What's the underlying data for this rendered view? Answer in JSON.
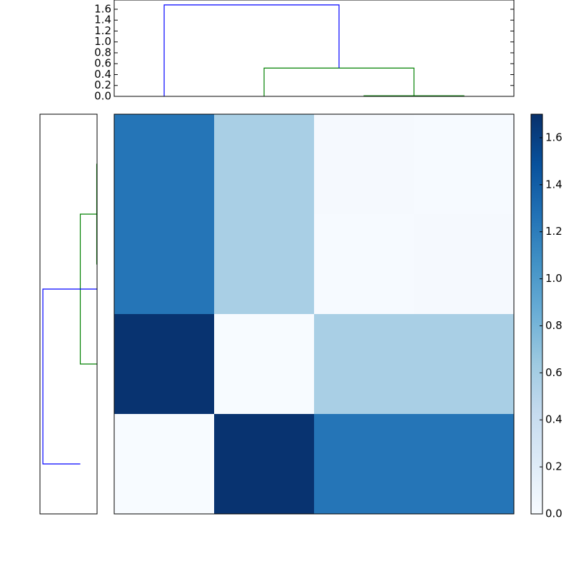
{
  "chart_data": [
    {
      "type": "dendrogram",
      "orientation": "top",
      "xlim": [
        0,
        40
      ],
      "ylim": [
        0,
        1.77
      ],
      "yticks": [
        {
          "value": 0,
          "label": "0.0"
        },
        {
          "value": 0.2,
          "label": "0.2"
        },
        {
          "value": 0.4,
          "label": "0.4"
        },
        {
          "value": 0.6,
          "label": "0.6"
        },
        {
          "value": 0.8,
          "label": "0.8"
        },
        {
          "value": 1,
          "label": "1.0"
        },
        {
          "value": 1.2,
          "label": "1.2"
        },
        {
          "value": 1.4,
          "label": "1.4"
        },
        {
          "value": 1.6,
          "label": "1.6"
        }
      ],
      "links": [
        {
          "color": "#008000",
          "leaf": [
            25,
            25,
            35,
            35
          ],
          "height": [
            0,
            0.01,
            0.01,
            0
          ]
        },
        {
          "color": "#008000",
          "leaf": [
            15,
            15,
            30,
            30
          ],
          "height": [
            0,
            0.52,
            0.52,
            0.01
          ]
        },
        {
          "color": "#0000ff",
          "leaf": [
            5,
            5,
            22.5,
            22.5
          ],
          "height": [
            0,
            1.68,
            1.68,
            0.52
          ]
        }
      ]
    },
    {
      "type": "dendrogram",
      "orientation": "left",
      "ylim": [
        0,
        40
      ],
      "xlim": [
        1.77,
        0
      ],
      "links": [
        {
          "color": "#008000",
          "leaf": [
            5,
            5,
            15,
            15
          ],
          "height": [
            0,
            0.01,
            0.01,
            0
          ]
        },
        {
          "color": "#008000",
          "leaf": [
            10,
            10,
            25,
            25
          ],
          "height": [
            0,
            0.52,
            0.52,
            0.01
          ]
        },
        {
          "color": "#0000ff",
          "leaf": [
            17.5,
            17.5,
            35,
            35
          ],
          "height": [
            0,
            1.68,
            1.68,
            0.52
          ]
        }
      ]
    },
    {
      "type": "heatmap",
      "matrix": [
        [
          1.25,
          0.58,
          0.02,
          0.01
        ],
        [
          1.25,
          0.58,
          0.01,
          0.02
        ],
        [
          1.68,
          0,
          0.58,
          0.58
        ],
        [
          0,
          1.68,
          1.25,
          1.25
        ]
      ],
      "colormap": [
        "#f7fbff",
        "#deebf7",
        "#c6dbef",
        "#9ecae1",
        "#6baed6",
        "#4292c6",
        "#2171b5",
        "#08519c",
        "#08306b"
      ],
      "clim": [
        0,
        1.7
      ],
      "cticks": [
        {
          "value": 0,
          "label": "0.0"
        },
        {
          "value": 0.2,
          "label": "0.2"
        },
        {
          "value": 0.4,
          "label": "0.4"
        },
        {
          "value": 0.6,
          "label": "0.6"
        },
        {
          "value": 0.8,
          "label": "0.8"
        },
        {
          "value": 1,
          "label": "1.0"
        },
        {
          "value": 1.2,
          "label": "1.2"
        },
        {
          "value": 1.4,
          "label": "1.4"
        },
        {
          "value": 1.6,
          "label": "1.6"
        }
      ]
    }
  ]
}
